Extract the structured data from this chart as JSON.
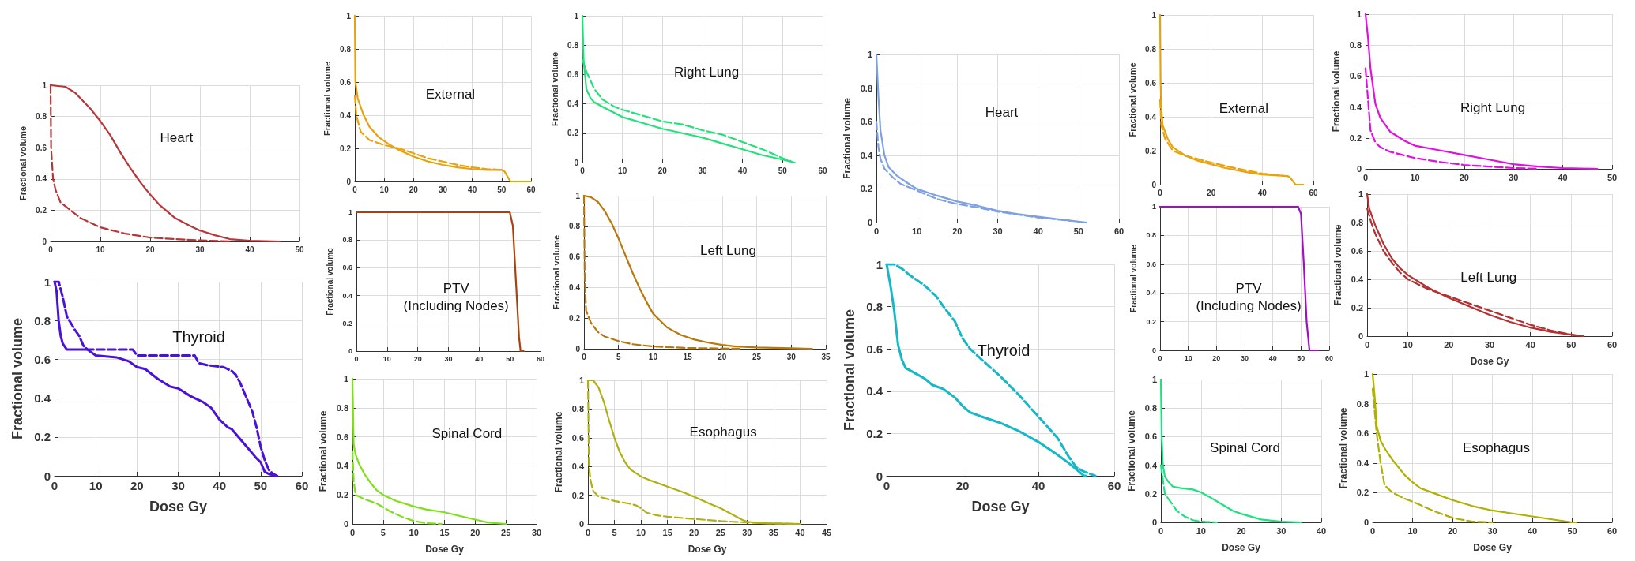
{
  "chart_data": [
    {
      "type": "line",
      "title": "Heart",
      "ylabel": "Fractional volume",
      "xlim": [
        0,
        50
      ],
      "xticks": [
        0,
        10,
        20,
        30,
        40,
        50
      ],
      "ylim": [
        0,
        1
      ],
      "yticks": [
        0,
        0.2,
        0.4,
        0.6,
        0.8,
        1
      ],
      "grid": true,
      "marker": "none",
      "series": [
        {
          "color": "#b5373a",
          "line_style": "solid",
          "x": [
            0,
            3,
            5,
            8,
            10,
            12,
            14,
            16,
            18,
            20,
            22,
            25,
            28,
            30,
            33,
            36,
            40,
            46
          ],
          "values": [
            1,
            0.99,
            0.95,
            0.85,
            0.77,
            0.68,
            0.57,
            0.47,
            0.38,
            0.3,
            0.23,
            0.15,
            0.1,
            0.07,
            0.04,
            0.015,
            0.005,
            0
          ]
        },
        {
          "color": "#b5373a",
          "line_style": "dashed",
          "x": [
            0,
            0.1,
            0.5,
            1,
            2,
            4,
            6,
            8,
            10,
            15,
            20,
            25,
            30,
            36
          ],
          "values": [
            1,
            0.6,
            0.4,
            0.33,
            0.25,
            0.2,
            0.15,
            0.12,
            0.09,
            0.05,
            0.025,
            0.015,
            0.007,
            0
          ]
        }
      ]
    },
    {
      "type": "line",
      "title": "Thyroid",
      "ylabel": "Fractional volume",
      "xlabel": "Dose Gy",
      "xlim": [
        0,
        60
      ],
      "xticks": [
        0,
        10,
        20,
        30,
        40,
        50,
        60
      ],
      "ylim": [
        0,
        1
      ],
      "yticks": [
        0,
        0.2,
        0.4,
        0.6,
        0.8,
        1
      ],
      "grid": true,
      "marker": "none",
      "series": [
        {
          "color": "#4a12d8",
          "line_style": "solid",
          "x": [
            0,
            0.5,
            1,
            1.5,
            2,
            3,
            8,
            10,
            15,
            18,
            20,
            22,
            25,
            28,
            30,
            33,
            36,
            38,
            40,
            42,
            43,
            45,
            47,
            49,
            50,
            51,
            52,
            53.5
          ],
          "values": [
            1,
            0.95,
            0.8,
            0.72,
            0.68,
            0.65,
            0.65,
            0.62,
            0.61,
            0.59,
            0.56,
            0.55,
            0.5,
            0.46,
            0.45,
            0.41,
            0.38,
            0.35,
            0.29,
            0.25,
            0.24,
            0.19,
            0.14,
            0.09,
            0.07,
            0.02,
            0.01,
            0
          ]
        },
        {
          "color": "#4a12d8",
          "line_style": "dashed",
          "x": [
            0,
            1,
            2,
            3,
            5,
            6,
            7,
            8,
            19,
            20,
            34,
            35,
            37,
            41,
            43,
            44,
            45,
            47,
            48,
            49,
            50,
            51,
            52,
            53,
            54
          ],
          "values": [
            1,
            1,
            0.92,
            0.82,
            0.75,
            0.72,
            0.67,
            0.65,
            0.65,
            0.62,
            0.62,
            0.58,
            0.57,
            0.56,
            0.54,
            0.52,
            0.48,
            0.38,
            0.33,
            0.25,
            0.15,
            0.08,
            0.03,
            0.01,
            0
          ]
        }
      ]
    },
    {
      "type": "line",
      "title": "External",
      "ylabel": "Fractional volume",
      "xlim": [
        0,
        60
      ],
      "xticks": [
        0,
        10,
        20,
        30,
        40,
        50,
        60
      ],
      "ylim": [
        0,
        1
      ],
      "yticks": [
        0,
        0.2,
        0.4,
        0.6,
        0.8,
        1
      ],
      "grid": true,
      "marker": "none",
      "series": [
        {
          "color": "#e8a20c",
          "line_style": "solid",
          "x": [
            0,
            0.2,
            1,
            3,
            5,
            8,
            12,
            15,
            20,
            25,
            30,
            35,
            40,
            45,
            50,
            51,
            52,
            53,
            60
          ],
          "values": [
            1,
            0.6,
            0.5,
            0.4,
            0.33,
            0.27,
            0.22,
            0.19,
            0.15,
            0.12,
            0.1,
            0.085,
            0.075,
            0.07,
            0.07,
            0.06,
            0.03,
            0,
            0
          ]
        },
        {
          "color": "#e8a20c",
          "line_style": "dashed",
          "x": [
            0,
            0.5,
            2,
            5,
            10,
            15,
            20,
            25,
            30,
            35,
            40,
            45,
            50
          ],
          "values": [
            0.52,
            0.4,
            0.3,
            0.25,
            0.22,
            0.2,
            0.17,
            0.14,
            0.12,
            0.1,
            0.085,
            0.075,
            0.07
          ]
        }
      ]
    },
    {
      "type": "line",
      "title": "Right Lung",
      "ylabel": "Fractional volume",
      "xlim": [
        0,
        60
      ],
      "xticks": [
        0,
        10,
        20,
        30,
        40,
        50,
        60
      ],
      "ylim": [
        0,
        1
      ],
      "yticks": [
        0,
        0.2,
        0.4,
        0.6,
        0.8,
        1
      ],
      "grid": true,
      "marker": "none",
      "series": [
        {
          "color": "#22e07a",
          "line_style": "solid",
          "x": [
            0,
            0.3,
            1,
            2,
            3,
            5,
            10,
            15,
            20,
            25,
            30,
            35,
            40,
            45,
            50,
            53
          ],
          "values": [
            1,
            0.7,
            0.5,
            0.44,
            0.41,
            0.38,
            0.31,
            0.27,
            0.23,
            0.2,
            0.17,
            0.13,
            0.09,
            0.05,
            0.02,
            0
          ]
        },
        {
          "color": "#22e07a",
          "line_style": "dashed",
          "x": [
            0,
            1,
            3,
            5,
            8,
            10,
            15,
            20,
            25,
            30,
            35,
            40,
            45,
            50,
            52
          ],
          "values": [
            0.7,
            0.62,
            0.5,
            0.43,
            0.38,
            0.36,
            0.32,
            0.28,
            0.26,
            0.22,
            0.19,
            0.14,
            0.09,
            0.03,
            0.01
          ]
        }
      ]
    },
    {
      "type": "line",
      "title": "PTV (Including Nodes)",
      "ylabel": "Fractional volume",
      "xlim": [
        0,
        60
      ],
      "xticks": [
        0,
        10,
        20,
        30,
        40,
        50,
        60
      ],
      "ylim": [
        0,
        1
      ],
      "yticks": [
        0,
        0.2,
        0.4,
        0.6,
        0.8,
        1
      ],
      "grid": true,
      "marker": "none",
      "series": [
        {
          "color": "#a8420c",
          "line_style": "solid",
          "x": [
            0,
            50,
            51,
            52,
            53,
            53.5,
            54.5
          ],
          "values": [
            1,
            1,
            0.9,
            0.5,
            0.1,
            0,
            0
          ]
        }
      ]
    },
    {
      "type": "line",
      "title": "Left Lung",
      "ylabel": "Fractional volume",
      "xlim": [
        0,
        35
      ],
      "xticks": [
        0,
        5,
        10,
        15,
        20,
        25,
        30,
        35
      ],
      "ylim": [
        0,
        1
      ],
      "yticks": [
        0,
        0.2,
        0.4,
        0.6,
        0.8,
        1
      ],
      "grid": true,
      "marker": "none",
      "series": [
        {
          "color": "#b8780c",
          "line_style": "solid",
          "x": [
            0,
            1,
            2,
            3,
            4,
            5,
            6,
            7,
            8,
            9,
            10,
            12,
            14,
            16,
            18,
            20,
            22,
            25,
            30,
            33
          ],
          "values": [
            1,
            0.99,
            0.96,
            0.9,
            0.82,
            0.72,
            0.61,
            0.5,
            0.4,
            0.31,
            0.23,
            0.14,
            0.09,
            0.06,
            0.04,
            0.025,
            0.015,
            0.008,
            0.003,
            0
          ]
        },
        {
          "color": "#b8780c",
          "line_style": "dashed",
          "x": [
            0,
            0.1,
            0.3,
            1,
            2,
            3,
            5,
            7,
            10,
            15,
            22.5
          ],
          "values": [
            1,
            0.5,
            0.25,
            0.17,
            0.11,
            0.08,
            0.05,
            0.03,
            0.015,
            0.005,
            0
          ]
        }
      ]
    },
    {
      "type": "line",
      "title": "Spinal Cord",
      "ylabel": "Fractional volume",
      "xlabel": "Dose Gy",
      "xlim": [
        0,
        30
      ],
      "xticks": [
        0,
        5,
        10,
        15,
        20,
        25,
        30
      ],
      "ylim": [
        0,
        1
      ],
      "yticks": [
        0,
        0.2,
        0.4,
        0.6,
        0.8,
        1
      ],
      "grid": true,
      "marker": "none",
      "series": [
        {
          "color": "#7ee01a",
          "line_style": "solid",
          "x": [
            0,
            0.2,
            0.5,
            1,
            2,
            3,
            4,
            5,
            7,
            10,
            12,
            15,
            17,
            20,
            22,
            25
          ],
          "values": [
            1,
            0.55,
            0.48,
            0.42,
            0.34,
            0.28,
            0.23,
            0.2,
            0.16,
            0.12,
            0.1,
            0.08,
            0.06,
            0.03,
            0.01,
            0
          ]
        },
        {
          "color": "#7ee01a",
          "line_style": "dashed",
          "x": [
            0,
            0.2,
            0.5,
            2,
            4,
            6,
            8,
            10,
            12,
            14.5
          ],
          "values": [
            0.5,
            0.3,
            0.2,
            0.17,
            0.14,
            0.09,
            0.05,
            0.02,
            0.005,
            0
          ]
        }
      ]
    },
    {
      "type": "line",
      "title": "Esophagus",
      "ylabel": "Fractional volume",
      "xlabel": "Dose Gy",
      "xlim": [
        0,
        45
      ],
      "xticks": [
        0,
        5,
        10,
        15,
        20,
        25,
        30,
        35,
        40,
        45
      ],
      "ylim": [
        0,
        1
      ],
      "yticks": [
        0,
        0.2,
        0.4,
        0.6,
        0.8,
        1
      ],
      "grid": true,
      "marker": "none",
      "series": [
        {
          "color": "#b0b014",
          "line_style": "solid",
          "x": [
            0,
            1,
            2,
            3,
            4,
            5,
            6,
            7,
            8,
            10,
            12,
            15,
            18,
            20,
            23,
            25,
            27,
            29,
            30,
            33,
            40
          ],
          "values": [
            1,
            1,
            0.95,
            0.85,
            0.72,
            0.6,
            0.5,
            0.43,
            0.38,
            0.33,
            0.3,
            0.26,
            0.22,
            0.19,
            0.14,
            0.11,
            0.07,
            0.03,
            0.015,
            0.005,
            0
          ]
        },
        {
          "color": "#b0b014",
          "line_style": "dashed",
          "x": [
            0,
            0.2,
            0.5,
            1,
            2,
            5,
            8,
            9,
            10,
            11,
            13,
            15,
            20,
            25,
            30,
            35,
            40
          ],
          "values": [
            1,
            0.4,
            0.3,
            0.23,
            0.19,
            0.16,
            0.14,
            0.13,
            0.11,
            0.08,
            0.06,
            0.05,
            0.035,
            0.02,
            0.01,
            0.003,
            0
          ]
        }
      ]
    },
    {
      "type": "line",
      "title": "Heart",
      "ylabel": "Fractional volume",
      "xlim": [
        0,
        60
      ],
      "xticks": [
        0,
        10,
        20,
        30,
        40,
        50,
        60
      ],
      "ylim": [
        0,
        1
      ],
      "yticks": [
        0,
        0.2,
        0.4,
        0.6,
        0.8,
        1
      ],
      "grid": true,
      "marker": "none",
      "series": [
        {
          "color": "#7fa0e0",
          "line_style": "solid",
          "x": [
            0,
            0.5,
            1,
            2,
            3,
            5,
            8,
            10,
            15,
            20,
            25,
            30,
            35,
            40,
            45,
            50,
            52
          ],
          "values": [
            1,
            0.75,
            0.55,
            0.4,
            0.33,
            0.28,
            0.23,
            0.2,
            0.16,
            0.125,
            0.1,
            0.07,
            0.05,
            0.035,
            0.02,
            0.005,
            0
          ]
        },
        {
          "color": "#7fa0e0",
          "line_style": "dashed",
          "x": [
            0,
            0.5,
            1,
            2,
            4,
            6,
            10,
            15,
            20,
            25,
            30,
            40,
            48
          ],
          "values": [
            0.6,
            0.45,
            0.38,
            0.32,
            0.27,
            0.23,
            0.19,
            0.14,
            0.11,
            0.09,
            0.065,
            0.03,
            0.01
          ]
        }
      ]
    },
    {
      "type": "line",
      "title": "Thyroid",
      "ylabel": "Fractional volume",
      "xlabel": "Dose Gy",
      "xlim": [
        0,
        60
      ],
      "xticks": [
        0,
        20,
        40,
        60
      ],
      "ylim": [
        0,
        1
      ],
      "yticks": [
        0,
        0.2,
        0.4,
        0.6,
        0.8,
        1
      ],
      "grid": true,
      "marker": "none",
      "series": [
        {
          "color": "#16b8c8",
          "line_style": "solid",
          "x": [
            0,
            1,
            2,
            3,
            4,
            5,
            8,
            10,
            12,
            15,
            18,
            20,
            22,
            25,
            30,
            35,
            40,
            45,
            48,
            50,
            52,
            52.5
          ],
          "values": [
            1,
            0.9,
            0.78,
            0.62,
            0.55,
            0.51,
            0.48,
            0.46,
            0.43,
            0.41,
            0.37,
            0.33,
            0.3,
            0.28,
            0.25,
            0.21,
            0.16,
            0.1,
            0.06,
            0.03,
            0,
            0
          ]
        },
        {
          "color": "#16b8c8",
          "line_style": "dashed",
          "x": [
            0,
            2,
            4,
            6,
            10,
            13,
            15,
            18,
            20,
            22,
            25,
            30,
            35,
            40,
            45,
            48,
            50,
            52,
            55
          ],
          "values": [
            1,
            1,
            0.98,
            0.95,
            0.9,
            0.85,
            0.8,
            0.73,
            0.65,
            0.6,
            0.55,
            0.47,
            0.38,
            0.28,
            0.18,
            0.09,
            0.04,
            0.02,
            0
          ]
        }
      ]
    },
    {
      "type": "line",
      "title": "External",
      "ylabel": "Fractional volume",
      "xlim": [
        0,
        60
      ],
      "xticks": [
        0,
        20,
        40,
        60
      ],
      "ylim": [
        0,
        1
      ],
      "yticks": [
        0,
        0.2,
        0.4,
        0.6,
        0.8,
        1
      ],
      "grid": true,
      "marker": "none",
      "series": [
        {
          "color": "#e8a20c",
          "line_style": "solid",
          "x": [
            0,
            0.2,
            0.5,
            1,
            3,
            5,
            8,
            10,
            15,
            20,
            25,
            30,
            35,
            40,
            45,
            50,
            51,
            52,
            53,
            56
          ],
          "values": [
            1,
            0.6,
            0.45,
            0.35,
            0.27,
            0.22,
            0.19,
            0.17,
            0.14,
            0.12,
            0.1,
            0.085,
            0.07,
            0.06,
            0.055,
            0.05,
            0.04,
            0.02,
            0,
            0
          ]
        },
        {
          "color": "#e8a20c",
          "line_style": "dashed",
          "x": [
            0,
            0.5,
            2,
            5,
            10,
            20,
            30,
            40,
            50
          ],
          "values": [
            0.5,
            0.35,
            0.27,
            0.2,
            0.17,
            0.13,
            0.095,
            0.065,
            0.05
          ]
        }
      ]
    },
    {
      "type": "line",
      "title": "Right Lung",
      "ylabel": "Fractional volume",
      "xlim": [
        0,
        50
      ],
      "xticks": [
        0,
        10,
        20,
        30,
        40,
        50
      ],
      "ylim": [
        0,
        1
      ],
      "yticks": [
        0,
        0.2,
        0.4,
        0.6,
        0.8,
        1
      ],
      "grid": true,
      "marker": "none",
      "series": [
        {
          "color": "#e010e0",
          "line_style": "solid",
          "x": [
            0,
            0.5,
            1,
            2,
            3,
            5,
            8,
            10,
            15,
            20,
            25,
            30,
            35,
            40,
            47
          ],
          "values": [
            1,
            0.85,
            0.65,
            0.42,
            0.33,
            0.24,
            0.18,
            0.15,
            0.12,
            0.09,
            0.06,
            0.03,
            0.015,
            0.005,
            0
          ]
        },
        {
          "color": "#e010e0",
          "line_style": "dashed",
          "x": [
            0,
            0.5,
            1,
            2,
            3,
            5,
            10,
            15,
            20,
            25,
            30,
            35
          ],
          "values": [
            0.65,
            0.45,
            0.25,
            0.17,
            0.14,
            0.11,
            0.07,
            0.045,
            0.025,
            0.015,
            0.005,
            0
          ]
        }
      ]
    },
    {
      "type": "line",
      "title": "PTV (Including Nodes)",
      "ylabel": "Fractional volume",
      "xlim": [
        0,
        60
      ],
      "xticks": [
        0,
        10,
        20,
        30,
        40,
        50,
        60
      ],
      "ylim": [
        0,
        1
      ],
      "yticks": [
        0,
        0.2,
        0.4,
        0.6,
        0.8,
        1
      ],
      "grid": true,
      "marker": "none",
      "series": [
        {
          "color": "#a010c0",
          "line_style": "solid",
          "x": [
            0,
            49,
            50,
            51,
            52,
            53,
            56
          ],
          "values": [
            1,
            1,
            0.95,
            0.6,
            0.2,
            0,
            0
          ]
        }
      ]
    },
    {
      "type": "line",
      "title": "Left Lung",
      "ylabel": "Fractional volume",
      "xlabel": "Dose Gy",
      "xlim": [
        0,
        60
      ],
      "xticks": [
        0,
        10,
        20,
        30,
        40,
        50,
        60
      ],
      "ylim": [
        0,
        1
      ],
      "yticks": [
        0,
        0.2,
        0.4,
        0.6,
        0.8,
        1
      ],
      "grid": true,
      "marker": "none",
      "series": [
        {
          "color": "#b53030",
          "line_style": "solid",
          "x": [
            0,
            0.5,
            2,
            4,
            6,
            8,
            10,
            15,
            20,
            25,
            30,
            35,
            40,
            45,
            50,
            53
          ],
          "values": [
            1,
            0.9,
            0.78,
            0.65,
            0.55,
            0.48,
            0.43,
            0.34,
            0.27,
            0.21,
            0.15,
            0.1,
            0.06,
            0.03,
            0.01,
            0
          ]
        },
        {
          "color": "#b53030",
          "line_style": "dashed",
          "x": [
            0,
            1,
            2,
            4,
            6,
            8,
            10,
            15,
            20,
            25,
            30,
            35,
            40,
            45,
            50,
            52
          ],
          "values": [
            0.9,
            0.8,
            0.72,
            0.6,
            0.52,
            0.45,
            0.4,
            0.33,
            0.28,
            0.23,
            0.18,
            0.13,
            0.08,
            0.04,
            0.01,
            0
          ]
        }
      ]
    },
    {
      "type": "line",
      "title": "Spinal Cord",
      "ylabel": "Fractional volume",
      "xlabel": "Dose Gy",
      "xlim": [
        0,
        40
      ],
      "xticks": [
        0,
        10,
        20,
        30,
        40
      ],
      "ylim": [
        0,
        1
      ],
      "yticks": [
        0,
        0.2,
        0.4,
        0.6,
        0.8,
        1
      ],
      "grid": true,
      "marker": "none",
      "series": [
        {
          "color": "#20e080",
          "line_style": "solid",
          "x": [
            0,
            0.2,
            0.5,
            1,
            2,
            3,
            5,
            8,
            10,
            12,
            15,
            18,
            20,
            25,
            30,
            35
          ],
          "values": [
            1,
            0.6,
            0.4,
            0.32,
            0.28,
            0.25,
            0.24,
            0.23,
            0.21,
            0.18,
            0.13,
            0.08,
            0.06,
            0.02,
            0.005,
            0
          ]
        },
        {
          "color": "#20e080",
          "line_style": "dashed",
          "x": [
            0,
            0.5,
            1,
            2,
            4,
            6,
            8,
            10,
            14
          ],
          "values": [
            0.4,
            0.3,
            0.2,
            0.16,
            0.08,
            0.04,
            0.015,
            0.005,
            0
          ]
        }
      ]
    },
    {
      "type": "line",
      "title": "Esophagus",
      "ylabel": "Fractional volume",
      "xlabel": "Dose Gy",
      "xlim": [
        0,
        60
      ],
      "xticks": [
        0,
        10,
        20,
        30,
        40,
        50,
        60
      ],
      "ylim": [
        0,
        1
      ],
      "yticks": [
        0,
        0.2,
        0.4,
        0.6,
        0.8,
        1
      ],
      "grid": true,
      "marker": "none",
      "series": [
        {
          "color": "#b0b000",
          "line_style": "solid",
          "x": [
            0,
            0.5,
            1,
            2,
            3,
            5,
            8,
            10,
            12,
            15,
            20,
            25,
            30,
            35,
            40,
            45,
            50,
            51
          ],
          "values": [
            1,
            0.85,
            0.65,
            0.55,
            0.5,
            0.42,
            0.32,
            0.27,
            0.23,
            0.2,
            0.15,
            0.11,
            0.08,
            0.06,
            0.04,
            0.02,
            0,
            0
          ]
        },
        {
          "color": "#b0b000",
          "line_style": "dashed",
          "x": [
            0,
            1,
            2,
            3,
            5,
            8,
            10,
            15,
            20,
            25,
            30
          ],
          "values": [
            0.9,
            0.6,
            0.4,
            0.25,
            0.2,
            0.16,
            0.14,
            0.08,
            0.03,
            0.005,
            0
          ]
        }
      ]
    }
  ]
}
